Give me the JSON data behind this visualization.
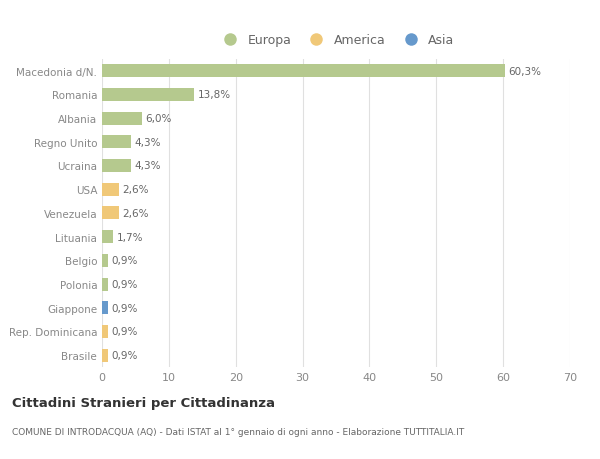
{
  "categories": [
    "Macedonia d/N.",
    "Romania",
    "Albania",
    "Regno Unito",
    "Ucraina",
    "USA",
    "Venezuela",
    "Lituania",
    "Belgio",
    "Polonia",
    "Giappone",
    "Rep. Dominicana",
    "Brasile"
  ],
  "values": [
    60.3,
    13.8,
    6.0,
    4.3,
    4.3,
    2.6,
    2.6,
    1.7,
    0.9,
    0.9,
    0.9,
    0.9,
    0.9
  ],
  "labels": [
    "60,3%",
    "13,8%",
    "6,0%",
    "4,3%",
    "4,3%",
    "2,6%",
    "2,6%",
    "1,7%",
    "0,9%",
    "0,9%",
    "0,9%",
    "0,9%",
    "0,9%"
  ],
  "continent": [
    "Europa",
    "Europa",
    "Europa",
    "Europa",
    "Europa",
    "America",
    "America",
    "Europa",
    "Europa",
    "Europa",
    "Asia",
    "America",
    "America"
  ],
  "colors": {
    "Europa": "#b5c98e",
    "America": "#f0c878",
    "Asia": "#6699cc"
  },
  "legend_labels": [
    "Europa",
    "America",
    "Asia"
  ],
  "legend_colors": [
    "#b5c98e",
    "#f0c878",
    "#6699cc"
  ],
  "xlim": [
    0,
    70
  ],
  "xticks": [
    0,
    10,
    20,
    30,
    40,
    50,
    60,
    70
  ],
  "title": "Cittadini Stranieri per Cittadinanza",
  "subtitle": "COMUNE DI INTRODACQUA (AQ) - Dati ISTAT al 1° gennaio di ogni anno - Elaborazione TUTTITALIA.IT",
  "bg_color": "#ffffff",
  "grid_color": "#e0e0e0"
}
